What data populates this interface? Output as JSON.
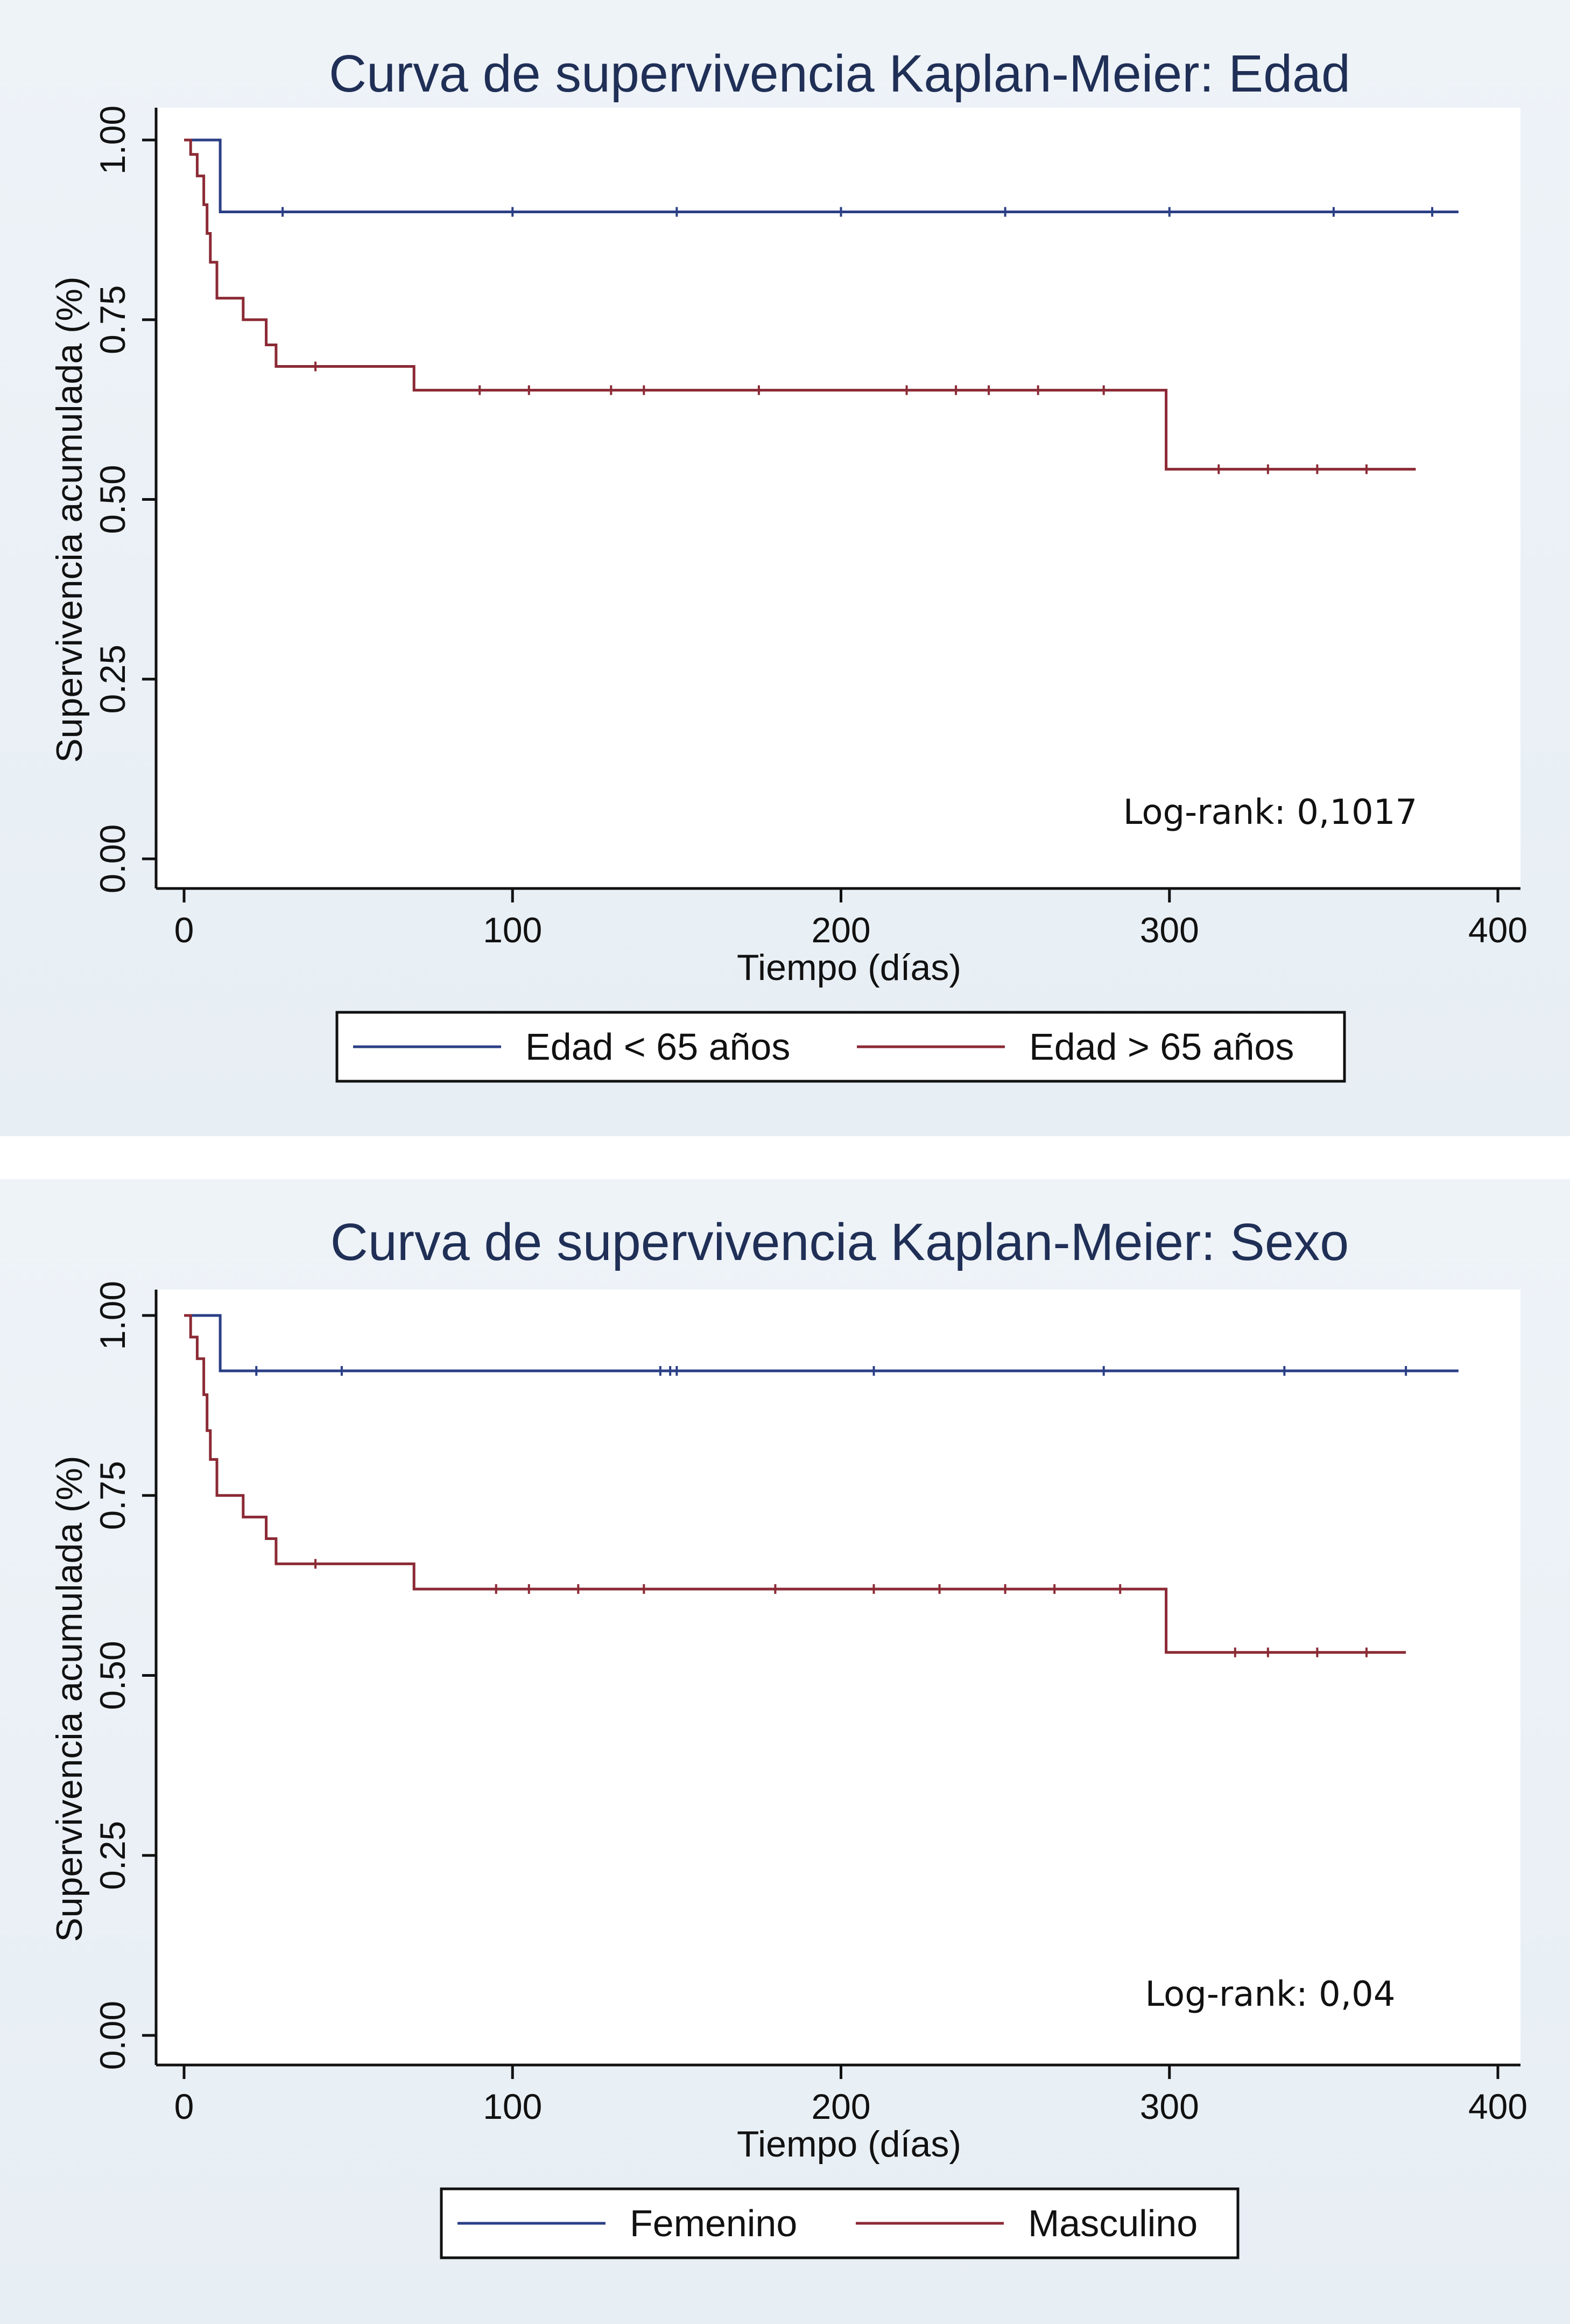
{
  "chart_data": [
    {
      "type": "line",
      "title": "Curva de supervivencia Kaplan-Meier: Edad",
      "xlabel": "Tiempo (días)",
      "ylabel": "Supervivencia acumulada (%)",
      "xlim": [
        0,
        400
      ],
      "ylim": [
        0,
        1
      ],
      "xticks": [
        "0",
        "100",
        "200",
        "300",
        "400"
      ],
      "yticks": [
        "0.00",
        "0.25",
        "0.50",
        "0.75",
        "1.00"
      ],
      "annotation": "Log-rank: 0,1017",
      "legend_position": "bottom",
      "grid": false,
      "series": [
        {
          "name": "Edad < 65 años",
          "color": "#2b3f86",
          "step": [
            [
              0,
              1.0
            ],
            [
              11,
              1.0
            ],
            [
              11,
              0.9
            ],
            [
              388,
              0.9
            ]
          ],
          "censor_x": [
            30,
            100,
            150,
            200,
            250,
            300,
            350,
            380
          ]
        },
        {
          "name": "Edad > 65 años",
          "color": "#8b2a35",
          "step": [
            [
              0,
              1.0
            ],
            [
              2,
              1.0
            ],
            [
              2,
              0.98
            ],
            [
              4,
              0.98
            ],
            [
              4,
              0.95
            ],
            [
              6,
              0.95
            ],
            [
              6,
              0.91
            ],
            [
              7,
              0.91
            ],
            [
              7,
              0.87
            ],
            [
              8,
              0.87
            ],
            [
              8,
              0.83
            ],
            [
              10,
              0.83
            ],
            [
              10,
              0.78
            ],
            [
              18,
              0.78
            ],
            [
              18,
              0.75
            ],
            [
              25,
              0.75
            ],
            [
              25,
              0.715
            ],
            [
              28,
              0.715
            ],
            [
              28,
              0.685
            ],
            [
              70,
              0.685
            ],
            [
              70,
              0.652
            ],
            [
              299,
              0.652
            ],
            [
              299,
              0.542
            ],
            [
              375,
              0.542
            ]
          ],
          "censor_x": [
            40,
            90,
            105,
            130,
            140,
            175,
            220,
            235,
            245,
            260,
            280,
            315,
            330,
            345,
            360
          ]
        }
      ]
    },
    {
      "type": "line",
      "title": "Curva de supervivencia Kaplan-Meier: Sexo",
      "xlabel": "Tiempo (días)",
      "ylabel": "Supervivencia acumulada (%)",
      "xlim": [
        0,
        400
      ],
      "ylim": [
        0,
        1
      ],
      "xticks": [
        "0",
        "100",
        "200",
        "300",
        "400"
      ],
      "yticks": [
        "0.00",
        "0.25",
        "0.50",
        "0.75",
        "1.00"
      ],
      "annotation": "Log-rank: 0,04",
      "legend_position": "bottom",
      "grid": false,
      "series": [
        {
          "name": "Femenino",
          "color": "#2b3f86",
          "step": [
            [
              0,
              1.0
            ],
            [
              11,
              1.0
            ],
            [
              11,
              0.923
            ],
            [
              388,
              0.923
            ]
          ],
          "censor_x": [
            22,
            48,
            145,
            148,
            150,
            210,
            280,
            335,
            372
          ]
        },
        {
          "name": "Masculino",
          "color": "#8b2a35",
          "step": [
            [
              0,
              1.0
            ],
            [
              2,
              1.0
            ],
            [
              2,
              0.97
            ],
            [
              4,
              0.97
            ],
            [
              4,
              0.94
            ],
            [
              6,
              0.94
            ],
            [
              6,
              0.89
            ],
            [
              7,
              0.89
            ],
            [
              7,
              0.84
            ],
            [
              8,
              0.84
            ],
            [
              8,
              0.8
            ],
            [
              10,
              0.8
            ],
            [
              10,
              0.75
            ],
            [
              18,
              0.75
            ],
            [
              18,
              0.72
            ],
            [
              25,
              0.72
            ],
            [
              25,
              0.69
            ],
            [
              28,
              0.69
            ],
            [
              28,
              0.655
            ],
            [
              70,
              0.655
            ],
            [
              70,
              0.62
            ],
            [
              299,
              0.62
            ],
            [
              299,
              0.532
            ],
            [
              372,
              0.532
            ]
          ],
          "censor_x": [
            40,
            95,
            105,
            120,
            140,
            180,
            210,
            230,
            250,
            265,
            285,
            320,
            330,
            345,
            360
          ]
        }
      ]
    }
  ]
}
